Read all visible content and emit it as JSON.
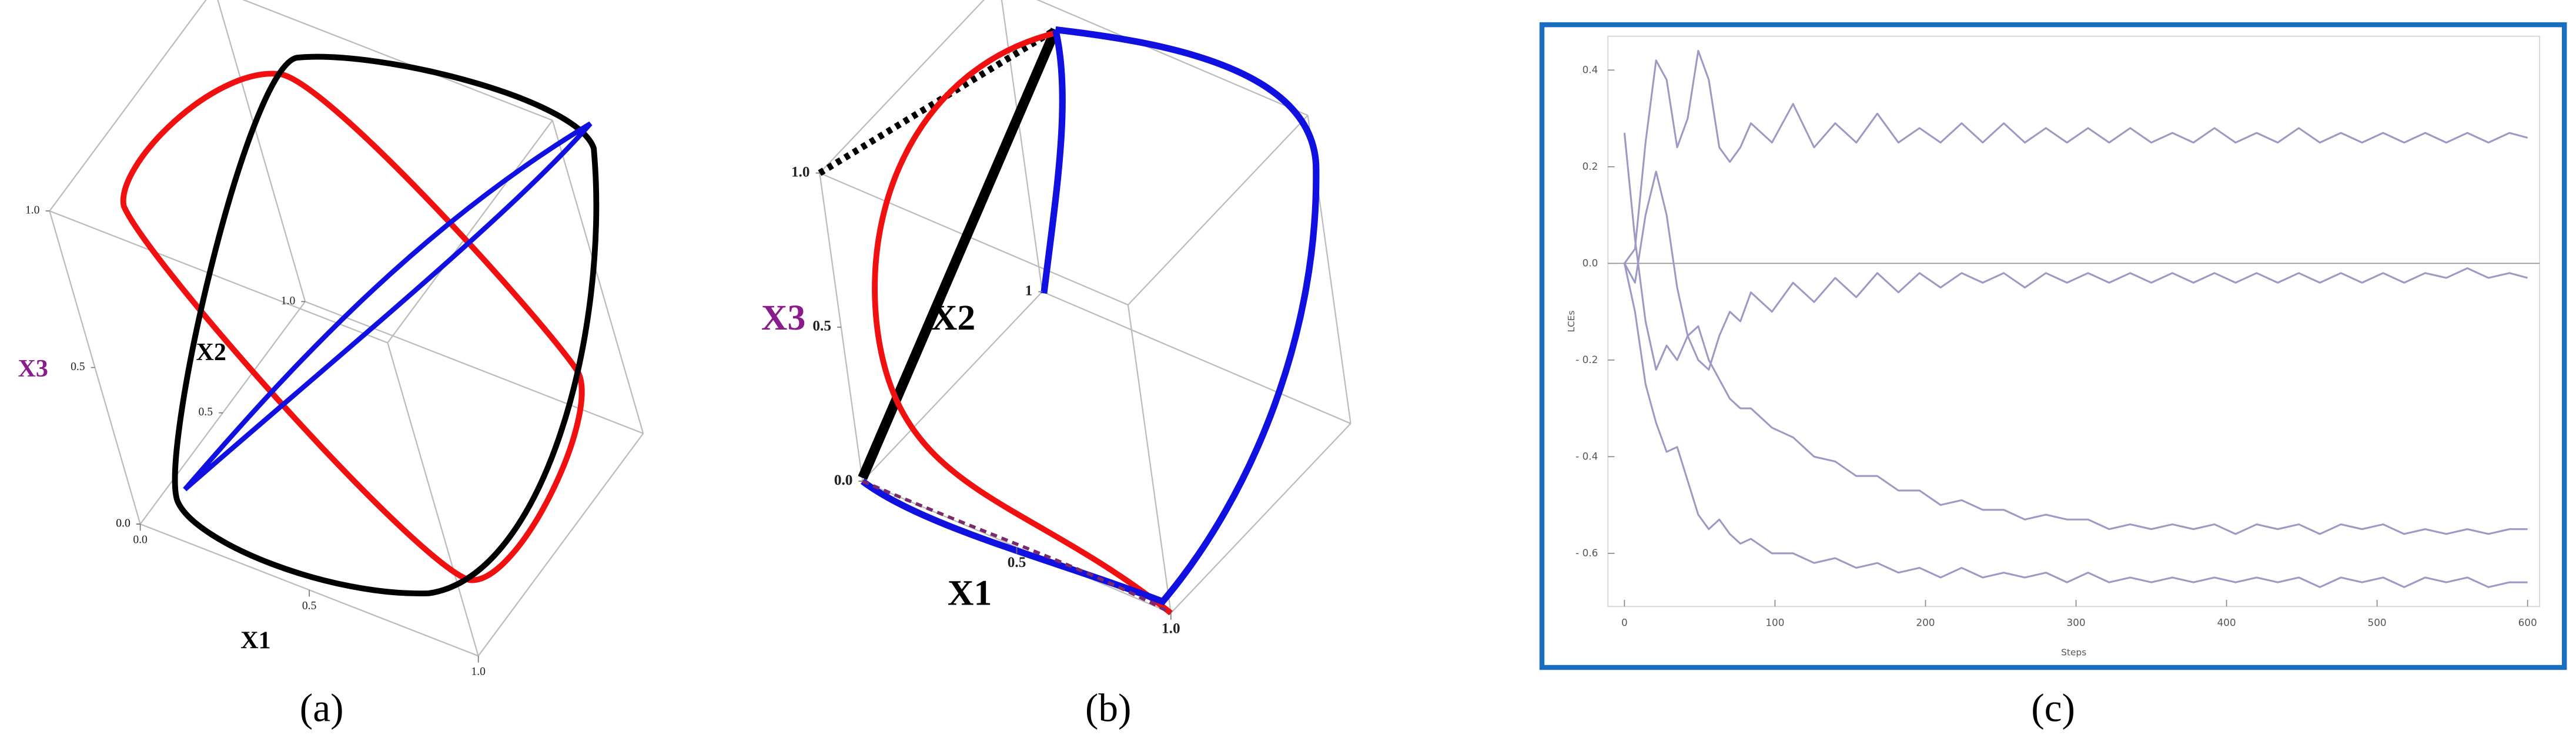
{
  "chart_data": [
    {
      "type": "plot3d",
      "caption": "(a)",
      "xlabel": "X1",
      "ylabel": "X2",
      "zlabel": "X3",
      "xticks": [
        {
          "value": 0,
          "label": "0.0"
        },
        {
          "value": 0.5,
          "label": "0.5"
        },
        {
          "value": 1,
          "label": "1.0"
        }
      ],
      "yticks": [
        {
          "value": 0,
          "label": "0.0"
        },
        {
          "value": 0.5,
          "label": "0.5"
        },
        {
          "value": 1,
          "label": "1.0"
        }
      ],
      "zticks": [
        {
          "value": 0,
          "label": "0.0"
        },
        {
          "value": 0.5,
          "label": "0.5"
        },
        {
          "value": 1,
          "label": "1.0"
        }
      ]
    },
    {
      "type": "plot3d",
      "caption": "(b)",
      "xlabel": "X1",
      "ylabel": "X2",
      "zlabel": "X3",
      "xticks": [
        {
          "value": 0.5,
          "label": "0.5"
        },
        {
          "value": 1,
          "label": "1.0"
        }
      ],
      "yticks": [
        {
          "value": 0,
          "label": "0.0"
        },
        1
      ],
      "zticks": [
        {
          "value": 0,
          "label": "0.0"
        },
        {
          "value": 0.5,
          "label": "0.5"
        },
        {
          "value": 1,
          "label": "1.0"
        }
      ]
    },
    {
      "type": "line",
      "caption": "(c)",
      "xlabel": "Steps",
      "ylabel": "LCEs",
      "x": [
        0,
        7,
        14,
        21,
        28,
        35,
        42,
        49,
        56,
        63,
        70,
        77,
        84,
        98,
        112,
        126,
        140,
        154,
        168,
        182,
        196,
        210,
        224,
        238,
        252,
        266,
        280,
        294,
        308,
        322,
        336,
        350,
        364,
        378,
        392,
        406,
        420,
        434,
        448,
        462,
        476,
        490,
        504,
        518,
        532,
        546,
        560,
        574,
        588,
        600
      ],
      "series": [
        {
          "color": "#9c99c4",
          "values": [
            0,
            0.03,
            0.25,
            0.42,
            0.38,
            0.24,
            0.3,
            0.44,
            0.38,
            0.24,
            0.21,
            0.24,
            0.29,
            0.25,
            0.33,
            0.24,
            0.29,
            0.25,
            0.31,
            0.25,
            0.28,
            0.25,
            0.29,
            0.25,
            0.29,
            0.25,
            0.28,
            0.25,
            0.28,
            0.25,
            0.28,
            0.25,
            0.27,
            0.25,
            0.28,
            0.25,
            0.27,
            0.25,
            0.28,
            0.25,
            0.27,
            0.25,
            0.27,
            0.25,
            0.27,
            0.25,
            0.27,
            0.25,
            0.27,
            0.26
          ]
        },
        {
          "color": "#9c99c4",
          "values": [
            0,
            -0.04,
            0.1,
            0.19,
            0.1,
            -0.05,
            -0.15,
            -0.2,
            -0.22,
            -0.15,
            -0.1,
            -0.12,
            -0.06,
            -0.1,
            -0.04,
            -0.08,
            -0.03,
            -0.07,
            -0.02,
            -0.06,
            -0.02,
            -0.05,
            -0.02,
            -0.04,
            -0.02,
            -0.05,
            -0.02,
            -0.04,
            -0.02,
            -0.04,
            -0.02,
            -0.04,
            -0.02,
            -0.04,
            -0.02,
            -0.04,
            -0.02,
            -0.04,
            -0.02,
            -0.04,
            -0.02,
            -0.04,
            -0.02,
            -0.04,
            -0.02,
            -0.03,
            -0.01,
            -0.03,
            -0.02,
            -0.03
          ]
        },
        {
          "color": "#9c99c4",
          "values": [
            0.27,
            0.05,
            -0.12,
            -0.22,
            -0.17,
            -0.2,
            -0.15,
            -0.13,
            -0.2,
            -0.24,
            -0.28,
            -0.3,
            -0.3,
            -0.34,
            -0.36,
            -0.4,
            -0.41,
            -0.44,
            -0.44,
            -0.47,
            -0.47,
            -0.5,
            -0.49,
            -0.51,
            -0.51,
            -0.53,
            -0.52,
            -0.53,
            -0.53,
            -0.55,
            -0.54,
            -0.55,
            -0.54,
            -0.55,
            -0.54,
            -0.56,
            -0.54,
            -0.55,
            -0.54,
            -0.56,
            -0.54,
            -0.55,
            -0.54,
            -0.56,
            -0.55,
            -0.56,
            -0.55,
            -0.56,
            -0.55,
            -0.55
          ]
        },
        {
          "color": "#9c99c4",
          "values": [
            0,
            -0.1,
            -0.25,
            -0.33,
            -0.39,
            -0.38,
            -0.45,
            -0.52,
            -0.55,
            -0.53,
            -0.56,
            -0.58,
            -0.57,
            -0.6,
            -0.6,
            -0.62,
            -0.61,
            -0.63,
            -0.62,
            -0.64,
            -0.63,
            -0.65,
            -0.63,
            -0.65,
            -0.64,
            -0.65,
            -0.64,
            -0.66,
            -0.64,
            -0.66,
            -0.65,
            -0.66,
            -0.65,
            -0.66,
            -0.65,
            -0.66,
            -0.65,
            -0.66,
            -0.65,
            -0.67,
            -0.65,
            -0.66,
            -0.65,
            -0.67,
            -0.65,
            -0.66,
            -0.65,
            -0.67,
            -0.66,
            -0.66
          ]
        }
      ],
      "xlim": [
        -11,
        608
      ],
      "ylim": [
        -0.71,
        0.47
      ],
      "xticks": [
        0,
        100,
        200,
        300,
        400,
        500,
        600
      ],
      "yticks": [
        {
          "value": -0.6,
          "label": "- 0.6"
        },
        {
          "value": -0.4,
          "label": "- 0.4"
        },
        {
          "value": -0.2,
          "label": "- 0.2"
        },
        {
          "value": 0,
          "label": "0.0"
        },
        0.2,
        0.4
      ]
    }
  ]
}
